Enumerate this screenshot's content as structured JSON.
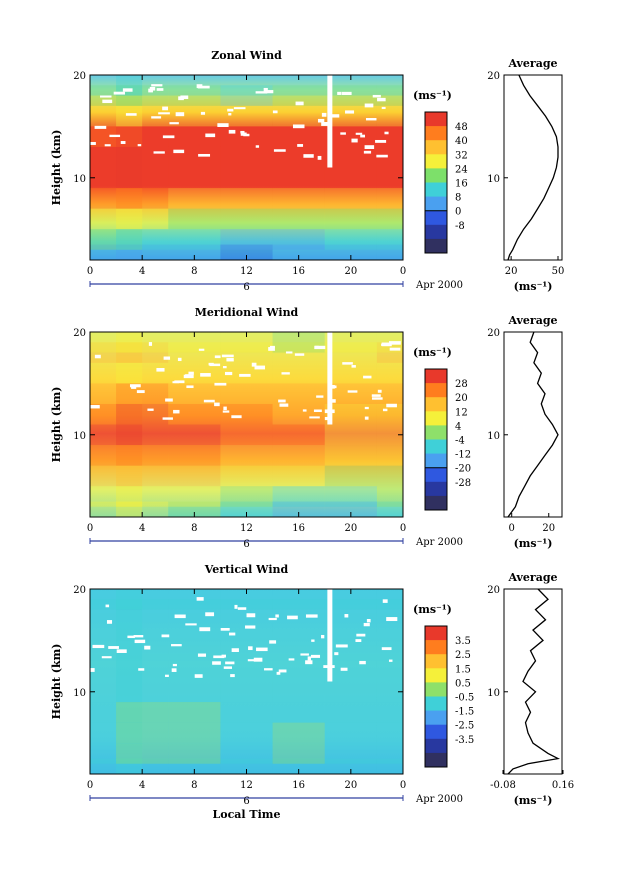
{
  "panels": [
    {
      "title": "Zonal Wind",
      "ylabel": "Height (km)",
      "y_ticks": [
        "20",
        "10"
      ],
      "x_ticks": [
        "0",
        "4",
        "8",
        "12",
        "16",
        "20",
        "0"
      ],
      "day_label": "6",
      "month_year": "Apr 2000",
      "colorbar": {
        "unit": "(ms⁻¹)",
        "labels": [
          "48",
          "40",
          "32",
          "24",
          "16",
          "8",
          "0",
          "-8"
        ],
        "colors": [
          "#e8392b",
          "#ff7d1e",
          "#ffc030",
          "#f5f03a",
          "#7de06a",
          "#3fd0d8",
          "#4aa0f0",
          "#2f58e0",
          "#2838a0",
          "#303060"
        ]
      },
      "average": {
        "title": "Average",
        "x_ticks": [
          "20",
          "50"
        ],
        "y_ticks": [
          "20",
          "10"
        ],
        "xlabel": "(ms⁻¹)"
      }
    },
    {
      "title": "Meridional Wind",
      "ylabel": "Height (km)",
      "y_ticks": [
        "20",
        "10"
      ],
      "x_ticks": [
        "0",
        "4",
        "8",
        "12",
        "16",
        "20",
        "0"
      ],
      "day_label": "6",
      "month_year": "Apr 2000",
      "colorbar": {
        "unit": "(ms⁻¹)",
        "labels": [
          "28",
          "20",
          "12",
          "4",
          "-4",
          "-12",
          "-20",
          "-28"
        ],
        "colors": [
          "#e8392b",
          "#ff7d1e",
          "#ffc030",
          "#f5f03a",
          "#8ee06a",
          "#3fd0d8",
          "#4aa0f0",
          "#2f58e0",
          "#2838a0",
          "#303060"
        ]
      },
      "average": {
        "title": "Average",
        "x_ticks": [
          "0",
          "20"
        ],
        "y_ticks": [
          "20",
          "10"
        ],
        "xlabel": "(ms⁻¹)"
      }
    },
    {
      "title": "Vertical Wind",
      "ylabel": "Height (km)",
      "y_ticks": [
        "20",
        "10"
      ],
      "x_ticks": [
        "0",
        "4",
        "8",
        "12",
        "16",
        "20",
        "0"
      ],
      "day_label": "6",
      "month_year": "Apr 2000",
      "xlabel": "Local Time",
      "colorbar": {
        "unit": "(ms⁻¹)",
        "labels": [
          "3.5",
          "2.5",
          "1.5",
          "0.5",
          "-0.5",
          "-1.5",
          "-2.5",
          "-3.5"
        ],
        "colors": [
          "#e8392b",
          "#ff7d1e",
          "#ffc030",
          "#f5f03a",
          "#8ee06a",
          "#3fd0d8",
          "#4aa0f0",
          "#2f58e0",
          "#2838a0",
          "#303060"
        ]
      },
      "average": {
        "title": "Average",
        "x_ticks": [
          "-0.08",
          "0.16"
        ],
        "y_ticks": [
          "20",
          "10"
        ],
        "xlabel": "(ms⁻¹)"
      }
    }
  ],
  "chart_data": [
    {
      "type": "heatmap",
      "title": "Zonal Wind",
      "ylabel": "Height (km)",
      "x_unit": "local time (h)",
      "x_range": [
        0,
        24
      ],
      "y_range": [
        2,
        20
      ],
      "z_range": [
        -8,
        52
      ],
      "heights_km": [
        2.5,
        4,
        6,
        8,
        10,
        12,
        14,
        16,
        18,
        19.5
      ],
      "times_h": [
        0,
        4,
        8,
        12,
        16,
        20,
        24
      ],
      "values_ms": [
        [
          14,
          14,
          12,
          8,
          10,
          10,
          10
        ],
        [
          22,
          20,
          16,
          14,
          14,
          16,
          16
        ],
        [
          30,
          28,
          26,
          22,
          24,
          24,
          26
        ],
        [
          40,
          40,
          38,
          34,
          36,
          36,
          38
        ],
        [
          48,
          48,
          48,
          48,
          48,
          48,
          48
        ],
        [
          50,
          50,
          50,
          50,
          50,
          50,
          50
        ],
        [
          44,
          46,
          46,
          46,
          46,
          46,
          46
        ],
        [
          32,
          32,
          32,
          30,
          30,
          30,
          32
        ],
        [
          22,
          22,
          22,
          20,
          22,
          22,
          22
        ],
        [
          18,
          18,
          18,
          16,
          18,
          18,
          18
        ]
      ],
      "average_profile": {
        "title": "Average",
        "heights_km": [
          2,
          2.5,
          3,
          4,
          5,
          6,
          7,
          8,
          9,
          10,
          11,
          12,
          13,
          14,
          15,
          16,
          17,
          18,
          19,
          20
        ],
        "values_ms": [
          18,
          19,
          21,
          24,
          28,
          33,
          37,
          41,
          44,
          47,
          49,
          50,
          50,
          49,
          46,
          42,
          37,
          32,
          28,
          25
        ]
      }
    },
    {
      "type": "heatmap",
      "title": "Meridional Wind",
      "ylabel": "Height (km)",
      "x_unit": "local time (h)",
      "x_range": [
        0,
        24
      ],
      "y_range": [
        2,
        20
      ],
      "z_range": [
        -28,
        28
      ],
      "heights_km": [
        2.5,
        4,
        6,
        8,
        10,
        12,
        14,
        16,
        18,
        19.5
      ],
      "times_h": [
        0,
        4,
        8,
        12,
        16,
        20,
        24
      ],
      "values_ms": [
        [
          6,
          6,
          2,
          -4,
          -6,
          -6,
          -4
        ],
        [
          10,
          10,
          6,
          2,
          -2,
          -4,
          0
        ],
        [
          14,
          16,
          14,
          10,
          6,
          2,
          4
        ],
        [
          18,
          20,
          20,
          16,
          14,
          8,
          6
        ],
        [
          24,
          28,
          24,
          22,
          20,
          10,
          8
        ],
        [
          22,
          24,
          20,
          20,
          16,
          10,
          10
        ],
        [
          16,
          18,
          14,
          14,
          14,
          12,
          12
        ],
        [
          10,
          10,
          8,
          8,
          10,
          8,
          10
        ],
        [
          14,
          12,
          10,
          10,
          10,
          10,
          12
        ],
        [
          8,
          6,
          8,
          6,
          4,
          6,
          8
        ]
      ],
      "average_profile": {
        "title": "Average",
        "heights_km": [
          2,
          2.5,
          3,
          4,
          5,
          6,
          7,
          8,
          9,
          10,
          11,
          12,
          13,
          14,
          15,
          16,
          17,
          18,
          19,
          20
        ],
        "values_ms": [
          -2,
          0,
          2,
          4,
          7,
          10,
          14,
          18,
          22,
          25,
          22,
          18,
          16,
          18,
          14,
          16,
          12,
          14,
          10,
          12
        ]
      }
    },
    {
      "type": "heatmap",
      "title": "Vertical Wind",
      "ylabel": "Height (km)",
      "xlabel": "Local Time",
      "x_unit": "local time (h)",
      "x_range": [
        0,
        24
      ],
      "y_range": [
        2,
        20
      ],
      "z_range": [
        -3.5,
        3.5
      ],
      "heights_km": [
        2.5,
        4,
        6,
        8,
        10,
        12,
        14,
        16,
        18,
        19.5
      ],
      "times_h": [
        0,
        4,
        8,
        12,
        16,
        20,
        24
      ],
      "values_ms": [
        [
          -0.5,
          -0.5,
          -0.4,
          -0.5,
          -0.3,
          -0.4,
          -0.5
        ],
        [
          -0.3,
          0.2,
          0.3,
          -0.2,
          0.1,
          -0.2,
          -0.3
        ],
        [
          -0.2,
          0.4,
          0.2,
          -0.1,
          0.2,
          -0.1,
          -0.2
        ],
        [
          -0.3,
          0.1,
          0.0,
          -0.3,
          -0.1,
          -0.2,
          -0.3
        ],
        [
          -0.2,
          -0.1,
          -0.2,
          -0.2,
          -0.1,
          -0.2,
          -0.2
        ],
        [
          -0.3,
          -0.2,
          -0.2,
          -0.3,
          -0.2,
          -0.3,
          -0.3
        ],
        [
          -0.4,
          -0.3,
          -0.4,
          -0.4,
          -0.3,
          -0.4,
          -0.4
        ],
        [
          -0.5,
          -0.5,
          -0.6,
          -0.5,
          -0.4,
          -0.5,
          -0.5
        ],
        [
          -0.4,
          -0.4,
          -0.5,
          -0.4,
          -0.4,
          -0.4,
          -0.4
        ],
        [
          -0.4,
          -0.4,
          -0.4,
          -0.4,
          -0.3,
          -0.4,
          -0.4
        ]
      ],
      "average_profile": {
        "title": "Average",
        "heights_km": [
          2,
          2.5,
          3,
          3.5,
          4,
          5,
          6,
          7,
          8,
          9,
          10,
          11,
          12,
          13,
          14,
          15,
          16,
          17,
          18,
          19,
          20
        ],
        "values_ms": [
          -0.06,
          -0.04,
          0.02,
          0.14,
          0.1,
          0.04,
          0.02,
          0.01,
          0.03,
          0.01,
          0.05,
          0.0,
          0.02,
          0.05,
          0.03,
          0.08,
          0.04,
          0.09,
          0.05,
          0.1,
          0.06
        ]
      }
    }
  ]
}
